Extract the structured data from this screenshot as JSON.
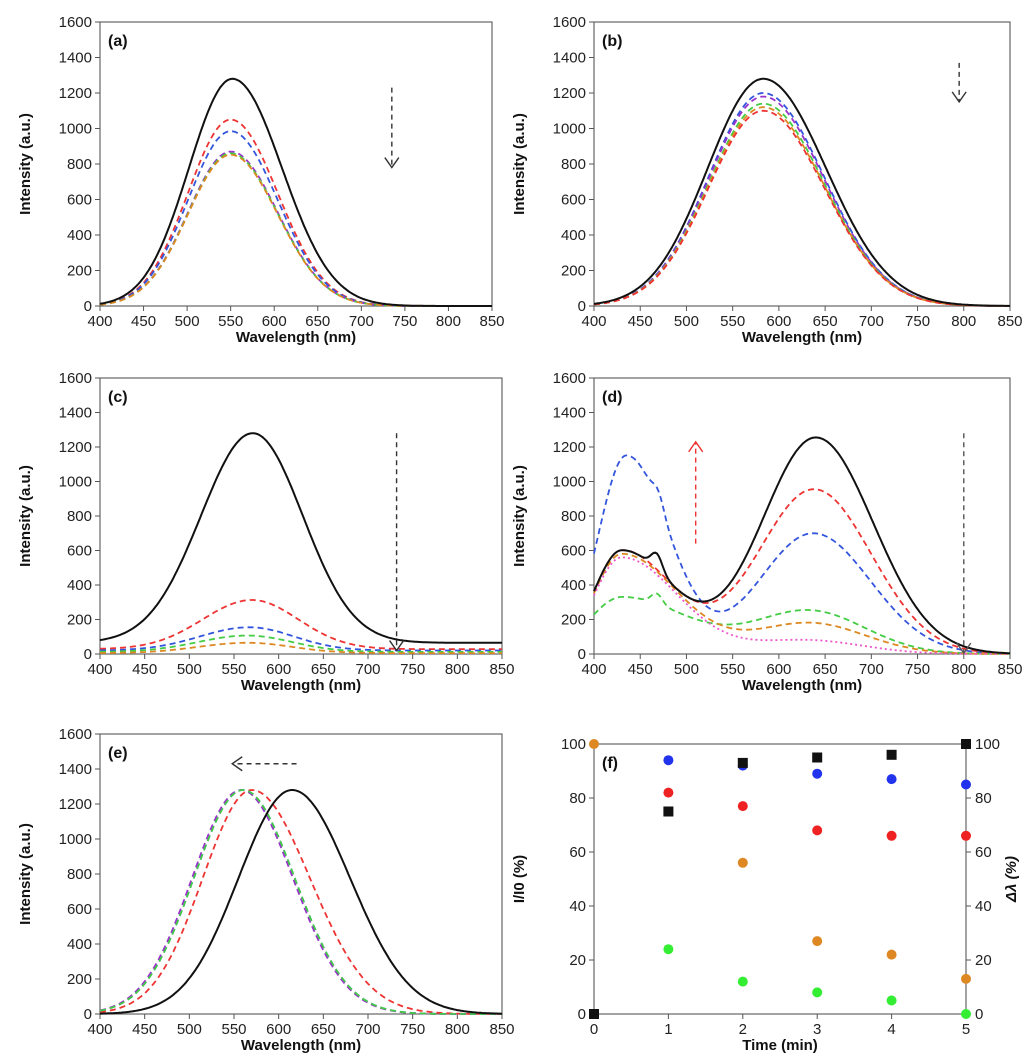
{
  "chart_data": [
    {
      "panel": "(a)",
      "type": "line",
      "xlabel": "Wavelength (nm)",
      "ylabel": "Intensity (a.u.)",
      "xlim": [
        400,
        850
      ],
      "ylim": [
        0,
        1600
      ],
      "xticks": [
        400,
        450,
        500,
        550,
        600,
        650,
        700,
        750,
        800,
        850
      ],
      "yticks": [
        0,
        200,
        400,
        600,
        800,
        1000,
        1200,
        1400,
        1600
      ],
      "arrow": {
        "direction": "down",
        "color": "#333333",
        "x": 735,
        "from": 1230,
        "to": 780
      },
      "series": [
        {
          "color": "#111111",
          "dash": "solid",
          "peaks": [
            {
              "c": 552,
              "hl": 50,
              "hr": 57,
              "a": 1280
            }
          ]
        },
        {
          "color": "#ee3333",
          "dash": "dashed",
          "peaks": [
            {
              "c": 550,
              "hl": 49,
              "hr": 54,
              "a": 1050
            }
          ]
        },
        {
          "color": "#3355dd",
          "dash": "dashed",
          "peaks": [
            {
              "c": 550,
              "hl": 49,
              "hr": 54,
              "a": 985
            }
          ]
        },
        {
          "color": "#9933cc",
          "dash": "dashed",
          "peaks": [
            {
              "c": 550,
              "hl": 49,
              "hr": 54,
              "a": 870
            }
          ]
        },
        {
          "color": "#44cc44",
          "dash": "dashed",
          "peaks": [
            {
              "c": 550,
              "hl": 49,
              "hr": 54,
              "a": 860
            }
          ]
        },
        {
          "color": "#dd8822",
          "dash": "dashed",
          "peaks": [
            {
              "c": 550,
              "hl": 49,
              "hr": 54,
              "a": 852
            }
          ]
        }
      ]
    },
    {
      "panel": "(b)",
      "type": "line",
      "xlabel": "Wavelength (nm)",
      "ylabel": "Intensity (a.u.)",
      "xlim": [
        400,
        850
      ],
      "ylim": [
        0,
        1600
      ],
      "xticks": [
        400,
        450,
        500,
        550,
        600,
        650,
        700,
        750,
        800,
        850
      ],
      "yticks": [
        0,
        200,
        400,
        600,
        800,
        1000,
        1200,
        1400,
        1600
      ],
      "arrow": {
        "direction": "down",
        "color": "#333333",
        "x": 795,
        "from": 1370,
        "to": 1150
      },
      "series": [
        {
          "color": "#111111",
          "dash": "solid",
          "peaks": [
            {
              "c": 583,
              "hl": 60,
              "hr": 68,
              "a": 1280
            }
          ]
        },
        {
          "color": "#3355dd",
          "dash": "dashed",
          "peaks": [
            {
              "c": 583,
              "hl": 59,
              "hr": 66,
              "a": 1200
            }
          ]
        },
        {
          "color": "#9933cc",
          "dash": "dashed",
          "peaks": [
            {
              "c": 583,
              "hl": 59,
              "hr": 66,
              "a": 1180
            }
          ]
        },
        {
          "color": "#44cc44",
          "dash": "dashed",
          "peaks": [
            {
              "c": 583,
              "hl": 59,
              "hr": 66,
              "a": 1140
            }
          ]
        },
        {
          "color": "#dd8822",
          "dash": "dashed",
          "peaks": [
            {
              "c": 583,
              "hl": 59,
              "hr": 66,
              "a": 1120
            }
          ]
        },
        {
          "color": "#ee3333",
          "dash": "dashed",
          "peaks": [
            {
              "c": 583,
              "hl": 59,
              "hr": 66,
              "a": 1100
            }
          ]
        }
      ]
    },
    {
      "panel": "(c)",
      "type": "line",
      "xlabel": "Wavelength (nm)",
      "ylabel": "Intensity (a.u.)",
      "xlim": [
        400,
        850
      ],
      "ylim": [
        0,
        1600
      ],
      "xticks": [
        400,
        450,
        500,
        550,
        600,
        650,
        700,
        750,
        800,
        850
      ],
      "yticks": [
        0,
        200,
        400,
        600,
        800,
        1000,
        1200,
        1400,
        1600
      ],
      "arrow": {
        "direction": "down",
        "color": "#333333",
        "x": 732,
        "from": 1280,
        "to": 20
      },
      "series": [
        {
          "color": "#111111",
          "dash": "solid",
          "base": 65,
          "peaks": [
            {
              "c": 571,
              "hl": 58,
              "hr": 56,
              "a": 1215
            }
          ]
        },
        {
          "color": "#ee3333",
          "dash": "dashed",
          "base": 28,
          "peaks": [
            {
              "c": 570,
              "hl": 55,
              "hr": 52,
              "a": 285
            }
          ]
        },
        {
          "color": "#3355dd",
          "dash": "dashed",
          "base": 20,
          "peaks": [
            {
              "c": 567,
              "hl": 55,
              "hr": 50,
              "a": 135
            }
          ]
        },
        {
          "color": "#44cc44",
          "dash": "dashed",
          "base": 12,
          "peaks": [
            {
              "c": 565,
              "hl": 55,
              "hr": 50,
              "a": 95
            }
          ]
        },
        {
          "color": "#dd8822",
          "dash": "dashed",
          "base": 5,
          "peaks": [
            {
              "c": 565,
              "hl": 55,
              "hr": 50,
              "a": 60
            }
          ]
        }
      ]
    },
    {
      "panel": "(d)",
      "type": "line",
      "xlabel": "Wavelength (nm)",
      "ylabel": "Intensity (a.u.)",
      "xlim": [
        400,
        850
      ],
      "ylim": [
        0,
        1600
      ],
      "xticks": [
        400,
        450,
        500,
        550,
        600,
        650,
        700,
        750,
        800,
        850
      ],
      "yticks": [
        0,
        200,
        400,
        600,
        800,
        1000,
        1200,
        1400,
        1600
      ],
      "arrows": [
        {
          "direction": "up",
          "color": "#ee3333",
          "x": 510,
          "from": 640,
          "to": 1230
        },
        {
          "direction": "down",
          "color": "#555555",
          "x": 800,
          "from": 1280,
          "to": 5
        }
      ],
      "series": [
        {
          "color": "#111111",
          "dash": "solid",
          "peaks": [
            {
              "c": 640,
              "hl": 58,
              "hr": 62,
              "a": 1255
            },
            {
              "c": 430,
              "hl": 30,
              "hr": 55,
              "a": 600
            },
            {
              "c": 468,
              "hl": 6,
              "hr": 6,
              "a": 95
            }
          ]
        },
        {
          "color": "#3355dd",
          "dash": "dashed",
          "peaks": [
            {
              "c": 637,
              "hl": 58,
              "hr": 62,
              "a": 700
            },
            {
              "c": 435,
              "hl": 30,
              "hr": 45,
              "a": 1150
            },
            {
              "c": 470,
              "hl": 6,
              "hr": 6,
              "a": 80
            }
          ]
        },
        {
          "color": "#ee3333",
          "dash": "dashed",
          "peaks": [
            {
              "c": 638,
              "hl": 60,
              "hr": 62,
              "a": 955
            },
            {
              "c": 430,
              "hl": 30,
              "hr": 55,
              "a": 600
            }
          ]
        },
        {
          "color": "#44cc44",
          "dash": "dashed",
          "peaks": [
            {
              "c": 633,
              "hl": 60,
              "hr": 60,
              "a": 250
            },
            {
              "c": 430,
              "hl": 35,
              "hr": 70,
              "a": 330
            },
            {
              "c": 468,
              "hl": 6,
              "hr": 6,
              "a": 60
            }
          ]
        },
        {
          "color": "#dd8822",
          "dash": "dashed",
          "peaks": [
            {
              "c": 633,
              "hl": 60,
              "hr": 60,
              "a": 180
            },
            {
              "c": 430,
              "hl": 30,
              "hr": 60,
              "a": 580
            }
          ]
        },
        {
          "color": "#ee55cc",
          "dash": "dotted",
          "peaks": [
            {
              "c": 630,
              "hl": 60,
              "hr": 60,
              "a": 80
            },
            {
              "c": 430,
              "hl": 30,
              "hr": 60,
              "a": 560
            }
          ]
        }
      ]
    },
    {
      "panel": "(e)",
      "type": "line",
      "xlabel": "Wavelength (nm)",
      "ylabel": "Intensity (a.u.)",
      "xlim": [
        400,
        850
      ],
      "ylim": [
        0,
        1600
      ],
      "xticks": [
        400,
        450,
        500,
        550,
        600,
        650,
        700,
        750,
        800,
        850
      ],
      "yticks": [
        0,
        200,
        400,
        600,
        800,
        1000,
        1200,
        1400,
        1600
      ],
      "arrow": {
        "direction": "left",
        "color": "#333333",
        "y": 1430,
        "from": 620,
        "to": 548
      },
      "series": [
        {
          "color": "#111111",
          "dash": "solid",
          "peaks": [
            {
              "c": 615,
              "hl": 60,
              "hr": 65,
              "a": 1280
            }
          ]
        },
        {
          "color": "#ee3333",
          "dash": "dashed",
          "peaks": [
            {
              "c": 570,
              "hl": 55,
              "hr": 65,
              "a": 1280
            }
          ]
        },
        {
          "color": "#3355dd",
          "dash": "dashed",
          "peaks": [
            {
              "c": 560,
              "hl": 55,
              "hr": 58,
              "a": 1280
            }
          ]
        },
        {
          "color": "#9933cc",
          "dash": "dashed",
          "peaks": [
            {
              "c": 558,
              "hl": 55,
              "hr": 58,
              "a": 1280
            }
          ]
        },
        {
          "color": "#44cc44",
          "dash": "dashed",
          "peaks": [
            {
              "c": 560,
              "hl": 55,
              "hr": 58,
              "a": 1280
            }
          ]
        }
      ]
    },
    {
      "panel": "(f)",
      "type": "scatter",
      "xlabel": "Time (min)",
      "ylabel": "I/I0 (%)",
      "ylabel_right": "Δλ (%)",
      "xlim": [
        0,
        5
      ],
      "ylim": [
        0,
        100
      ],
      "ylim_right": [
        0,
        100
      ],
      "xticks": [
        0,
        1,
        2,
        3,
        4,
        5
      ],
      "yticks": [
        0,
        20,
        40,
        60,
        80,
        100
      ],
      "yticks_right": [
        0,
        20,
        40,
        60,
        80,
        100
      ],
      "series": [
        {
          "color": "#2233ee",
          "marker": "circle",
          "axis": "left",
          "points": [
            [
              0,
              0
            ],
            [
              1,
              94
            ],
            [
              2,
              92
            ],
            [
              3,
              89
            ],
            [
              4,
              87
            ],
            [
              5,
              85
            ]
          ]
        },
        {
          "color": "#ee2222",
          "marker": "circle",
          "axis": "left",
          "points": [
            [
              1,
              82
            ],
            [
              2,
              77
            ],
            [
              3,
              68
            ],
            [
              4,
              66
            ],
            [
              5,
              66
            ]
          ]
        },
        {
          "color": "#dd8822",
          "marker": "circle",
          "axis": "left",
          "points": [
            [
              0,
              100
            ],
            [
              2,
              56
            ],
            [
              3,
              27
            ],
            [
              4,
              22
            ],
            [
              5,
              13
            ]
          ]
        },
        {
          "color": "#33ee33",
          "marker": "circle",
          "axis": "left",
          "points": [
            [
              1,
              24
            ],
            [
              2,
              12
            ],
            [
              3,
              8
            ],
            [
              4,
              5
            ],
            [
              5,
              0
            ]
          ]
        },
        {
          "color": "#111111",
          "marker": "square",
          "axis": "right",
          "points": [
            [
              0,
              0
            ],
            [
              1,
              75
            ],
            [
              2,
              93
            ],
            [
              3,
              95
            ],
            [
              4,
              96
            ],
            [
              5,
              100
            ]
          ]
        }
      ]
    }
  ]
}
